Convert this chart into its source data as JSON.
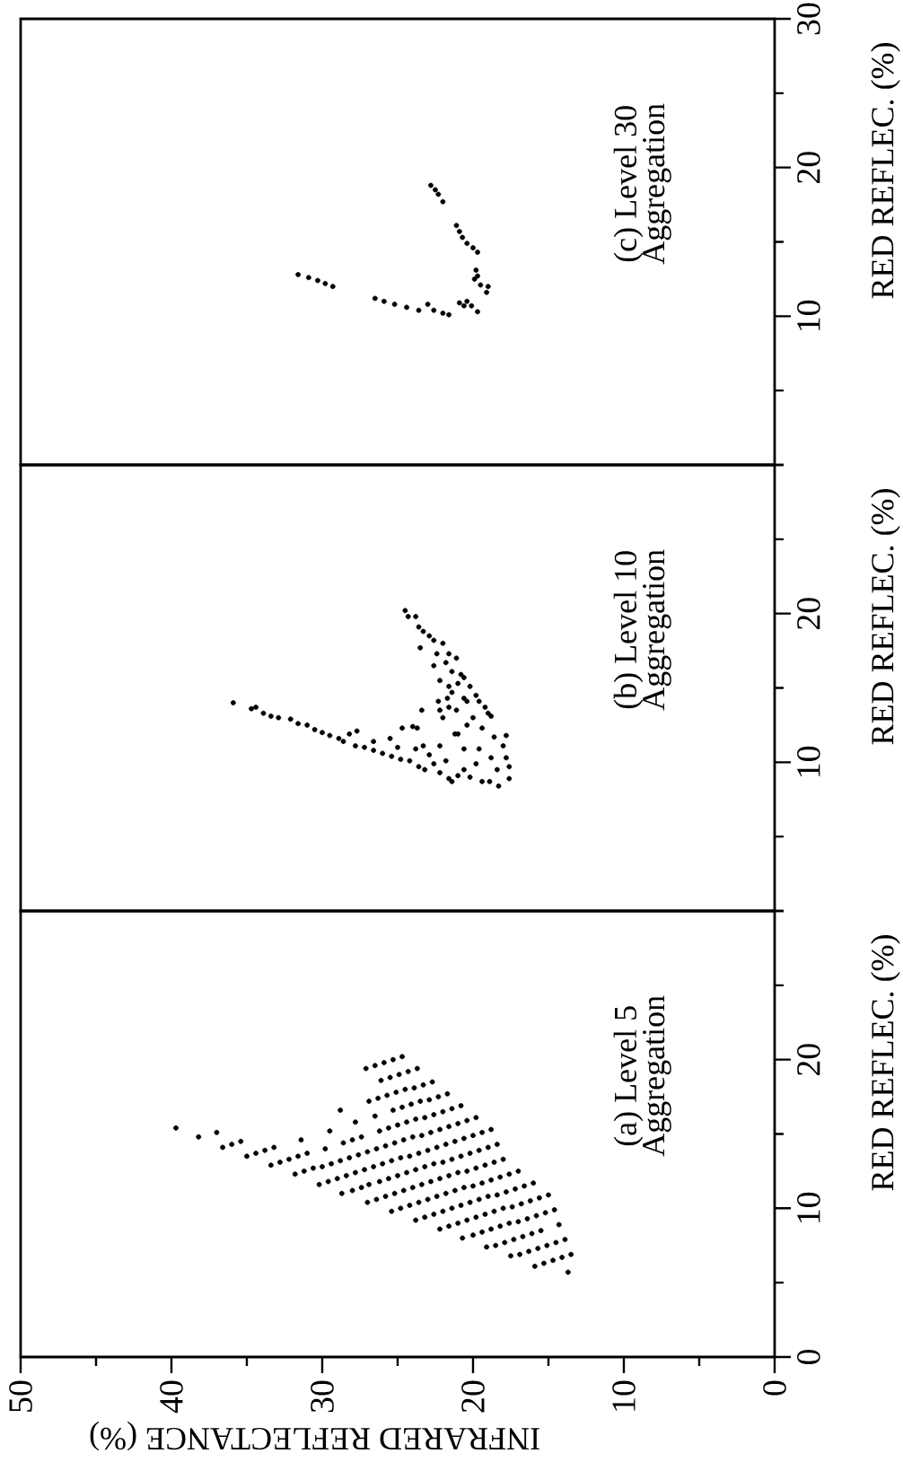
{
  "chart_data": [
    {
      "type": "scatter",
      "ylabel": "RED REFLEC. (%)",
      "xlabel": "INFRARED REFLECTANCE (%)",
      "annotations": [
        "(a)  Level 5",
        "Aggregation"
      ],
      "color": "#000000",
      "ylim": [
        0,
        30
      ],
      "xlim": [
        50,
        0
      ],
      "yticks": [
        0,
        {
          "value": 5,
          "label": null
        },
        10,
        {
          "value": 15,
          "label": null
        },
        20,
        {
          "value": 25,
          "label": null
        },
        {
          "value": 30,
          "label": null
        }
      ],
      "xticks": [
        0,
        {
          "value": 5,
          "label": null
        },
        10,
        {
          "value": 15,
          "label": null
        },
        20,
        {
          "value": 25,
          "label": null
        },
        30,
        {
          "value": 35,
          "label": null
        },
        40,
        {
          "value": 45,
          "label": null
        },
        50
      ],
      "values": [
        15.4,
        19.4,
        19.6,
        19.8,
        20.0,
        20.2,
        14.8,
        15.1,
        18.6,
        18.8,
        19.0,
        19.2,
        19.4,
        14.1,
        14.3,
        14.5,
        16.6,
        17.2,
        17.4,
        17.6,
        17.8,
        18.0,
        18.1,
        18.3,
        18.5,
        13.5,
        13.7,
        13.9,
        14.1,
        14.6,
        15.2,
        15.8,
        16.2,
        16.6,
        16.8,
        17.0,
        17.2,
        17.3,
        17.5,
        17.7,
        12.9,
        13.1,
        13.3,
        13.5,
        13.7,
        14.0,
        14.4,
        14.6,
        14.8,
        15.2,
        15.4,
        15.6,
        15.8,
        16.0,
        16.1,
        16.3,
        16.5,
        16.7,
        16.9,
        12.3,
        12.5,
        12.7,
        12.8,
        13.0,
        13.2,
        13.4,
        13.6,
        13.8,
        14.0,
        14.2,
        14.4,
        14.6,
        14.8,
        14.9,
        15.1,
        15.3,
        15.5,
        15.7,
        15.9,
        16.1,
        11.6,
        11.8,
        12.0,
        12.2,
        12.4,
        12.6,
        12.8,
        13.0,
        13.2,
        13.4,
        13.5,
        13.7,
        13.9,
        14.1,
        14.3,
        14.5,
        14.7,
        14.9,
        15.1,
        15.3,
        11.0,
        11.2,
        11.4,
        11.6,
        11.8,
        12.0,
        12.2,
        12.4,
        12.6,
        12.8,
        13.0,
        13.1,
        13.3,
        13.5,
        13.7,
        13.9,
        14.1,
        14.3,
        10.4,
        10.6,
        10.8,
        11.0,
        11.2,
        11.4,
        11.6,
        11.8,
        12.0,
        12.2,
        12.4,
        12.5,
        12.7,
        12.9,
        13.1,
        13.3,
        9.8,
        10.0,
        10.2,
        10.4,
        10.6,
        10.8,
        11.0,
        11.2,
        11.4,
        11.5,
        11.7,
        11.9,
        12.1,
        12.3,
        12.5,
        9.2,
        9.4,
        9.6,
        9.8,
        10.0,
        10.2,
        10.4,
        10.6,
        10.8,
        10.9,
        11.1,
        11.3,
        11.5,
        11.7,
        8.6,
        8.8,
        9.0,
        9.2,
        9.4,
        9.6,
        9.8,
        10.0,
        10.1,
        10.3,
        10.5,
        10.7,
        10.9,
        8.0,
        8.2,
        8.4,
        8.6,
        8.8,
        9.0,
        9.1,
        9.3,
        9.5,
        9.7,
        9.9,
        7.4,
        7.5,
        7.7,
        7.9,
        8.1,
        8.3,
        8.5,
        8.9,
        6.8,
        6.9,
        7.1,
        7.3,
        7.5,
        7.7,
        7.9,
        6.1,
        6.3,
        6.5,
        6.7,
        6.9,
        5.7
      ],
      "x": [
        39.7,
        27.1,
        26.5,
        25.9,
        25.3,
        24.7,
        38.2,
        37.0,
        26.1,
        25.5,
        24.9,
        24.3,
        23.7,
        36.6,
        36.0,
        35.4,
        28.8,
        26.9,
        26.3,
        25.7,
        25.1,
        24.5,
        23.9,
        23.3,
        22.7,
        35.0,
        34.4,
        33.8,
        33.2,
        31.4,
        29.5,
        27.8,
        26.5,
        25.3,
        24.7,
        24.1,
        23.5,
        22.9,
        22.3,
        21.7,
        33.4,
        32.8,
        32.2,
        31.6,
        31.0,
        29.8,
        28.6,
        28.0,
        27.4,
        26.2,
        25.6,
        25.0,
        24.4,
        23.8,
        23.2,
        22.6,
        22.0,
        21.4,
        20.8,
        31.8,
        31.2,
        30.6,
        30.0,
        29.4,
        28.8,
        28.2,
        27.6,
        27.0,
        26.4,
        25.8,
        25.2,
        24.6,
        24.0,
        23.4,
        22.8,
        22.2,
        21.6,
        21.0,
        20.4,
        19.8,
        30.2,
        29.6,
        29.0,
        28.4,
        27.8,
        27.2,
        26.6,
        26.0,
        25.4,
        24.8,
        24.2,
        23.6,
        23.0,
        22.4,
        21.8,
        21.2,
        20.6,
        20.0,
        19.4,
        18.8,
        28.7,
        28.0,
        27.4,
        26.9,
        26.2,
        25.6,
        25.0,
        24.4,
        23.8,
        23.2,
        22.6,
        22.0,
        21.4,
        20.8,
        20.2,
        19.6,
        19.0,
        18.4,
        27.0,
        26.4,
        25.8,
        25.2,
        24.6,
        24.0,
        23.4,
        22.8,
        22.2,
        21.6,
        21.0,
        20.4,
        19.8,
        19.2,
        18.6,
        18.0,
        25.4,
        24.8,
        24.2,
        23.6,
        23.0,
        22.4,
        21.8,
        21.2,
        20.6,
        20.0,
        19.4,
        18.8,
        18.2,
        17.6,
        17.0,
        23.8,
        23.2,
        22.6,
        22.0,
        21.4,
        20.8,
        20.2,
        19.6,
        19.0,
        18.4,
        17.8,
        17.2,
        16.6,
        16.0,
        22.2,
        21.6,
        21.0,
        20.4,
        19.8,
        19.2,
        18.6,
        18.0,
        17.4,
        16.8,
        16.2,
        15.6,
        15.0,
        20.7,
        20.0,
        19.4,
        18.8,
        18.2,
        17.6,
        17.0,
        16.4,
        15.8,
        15.2,
        14.6,
        19.1,
        18.5,
        17.9,
        17.3,
        16.7,
        16.1,
        15.5,
        14.3,
        17.5,
        16.9,
        16.3,
        15.7,
        15.1,
        14.5,
        13.9,
        15.9,
        15.3,
        14.7,
        14.1,
        13.5,
        13.7
      ]
    },
    {
      "type": "scatter",
      "ylabel": "RED REFLEC. (%)",
      "annotations": [
        "(b)  Level 10",
        "Aggregation"
      ],
      "color": "#000000",
      "tick_labels": "y",
      "ylim": [
        0,
        30
      ],
      "xlim": [
        50,
        0
      ],
      "yticks": [
        {
          "value": 0,
          "label": null
        },
        {
          "value": 5,
          "label": null
        },
        10,
        {
          "value": 15,
          "label": null
        },
        20,
        {
          "value": 25,
          "label": null
        },
        {
          "value": 30,
          "label": null
        }
      ],
      "values": [
        14.0,
        13.6,
        13.7,
        13.3,
        13.1,
        13.0,
        12.9,
        12.6,
        12.5,
        12.2,
        12.0,
        11.8,
        11.6,
        11.4,
        11.9,
        12.1,
        11.1,
        11.0,
        10.8,
        11.4,
        10.6,
        11.6,
        10.4,
        10.2,
        11.0,
        10.1,
        10.9,
        9.7,
        9.5,
        10.5,
        9.9,
        9.3,
        8.9,
        8.7,
        10.1,
        9.1,
        9.5,
        9.0,
        9.9,
        8.7,
        8.7,
        10.3,
        9.5,
        8.4,
        8.9,
        9.7,
        10.3,
        11.1,
        11.7,
        10.9,
        10.9,
        11.9,
        11.1,
        11.1,
        12.3,
        12.4,
        12.3,
        13.5,
        14.1,
        13.5,
        13.0,
        13.7,
        11.9,
        12.5,
        13.0,
        12.3,
        13.1,
        11.8,
        20.2,
        19.8,
        19.8,
        19.1,
        18.8,
        18.5,
        18.2,
        18.0,
        17.7,
        17.3,
        17.3,
        17.0,
        16.7,
        16.5,
        16.1,
        15.9,
        15.3,
        15.7,
        15.1,
        14.7,
        14.5,
        14.1,
        14.1,
        13.7,
        13.3,
        13.5,
        14.3,
        15.5,
        15.1,
        14.3
      ],
      "x": [
        35.9,
        34.7,
        34.4,
        33.9,
        33.4,
        32.9,
        32.1,
        31.6,
        31.0,
        30.5,
        30.0,
        29.5,
        28.9,
        28.6,
        28.2,
        27.7,
        27.8,
        27.2,
        26.6,
        26.6,
        26.0,
        25.5,
        25.4,
        24.8,
        25.0,
        24.2,
        23.8,
        23.6,
        23.2,
        22.9,
        22.6,
        22.2,
        21.6,
        21.4,
        21.8,
        21.0,
        20.6,
        20.2,
        19.8,
        19.4,
        18.9,
        18.8,
        18.4,
        18.3,
        17.6,
        17.6,
        17.8,
        18.0,
        18.6,
        19.6,
        20.6,
        21.0,
        22.2,
        23.3,
        24.7,
        24.0,
        23.7,
        23.4,
        22.3,
        22.2,
        22.0,
        21.6,
        21.2,
        20.4,
        20.0,
        19.4,
        18.8,
        17.8,
        24.5,
        24.3,
        23.8,
        23.6,
        23.3,
        22.9,
        22.6,
        22.0,
        23.5,
        22.4,
        21.6,
        21.1,
        21.8,
        22.6,
        21.4,
        20.8,
        21.0,
        20.6,
        20.2,
        21.4,
        19.8,
        20.4,
        19.6,
        19.2,
        19.0,
        21.1,
        20.6,
        22.2,
        21.6,
        21.7
      ]
    },
    {
      "type": "scatter",
      "ylabel": "RED REFLEC. (%)",
      "annotations": [
        "(c)  Level 30",
        "Aggregation"
      ],
      "color": "#000000",
      "tick_labels": "y",
      "ylim": [
        0,
        30
      ],
      "xlim": [
        50,
        0
      ],
      "yticks": [
        {
          "value": 0,
          "label": null
        },
        {
          "value": 5,
          "label": null
        },
        10,
        {
          "value": 15,
          "label": null
        },
        20,
        {
          "value": 25,
          "label": null
        },
        30
      ],
      "values": [
        18.8,
        18.5,
        18.2,
        17.7,
        16.1,
        15.7,
        15.3,
        14.9,
        14.6,
        14.3,
        13.1,
        12.5,
        12.1,
        12.0,
        11.6,
        12.7,
        12.8,
        12.6,
        12.4,
        12.2,
        12.0,
        11.2,
        11.0,
        10.8,
        10.6,
        10.4,
        10.8,
        10.4,
        10.2,
        10.1,
        10.9,
        11.0,
        10.7,
        10.3,
        10.7
      ],
      "x": [
        22.8,
        22.5,
        22.3,
        22.0,
        21.1,
        20.9,
        20.7,
        20.4,
        20.0,
        19.7,
        19.8,
        19.9,
        19.5,
        19.0,
        19.1,
        19.7,
        31.6,
        30.9,
        30.3,
        29.8,
        29.3,
        26.5,
        25.9,
        25.2,
        24.4,
        23.6,
        23.0,
        22.6,
        22.0,
        21.6,
        20.9,
        20.4,
        20.1,
        19.7,
        20.6
      ]
    }
  ]
}
